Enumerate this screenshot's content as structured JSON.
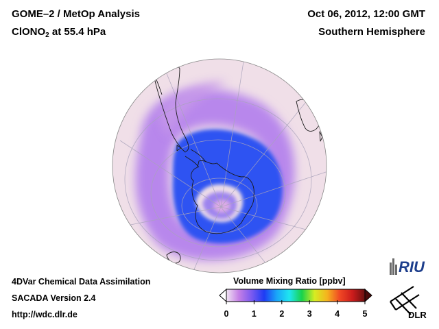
{
  "header": {
    "title": "GOME–2 / MetOp Analysis",
    "species": "ClONO",
    "species_sub": "2",
    "level": " at 55.4 hPa",
    "datetime": "Oct 06, 2012, 12:00 GMT",
    "region": "Southern Hemisphere"
  },
  "footer": {
    "line1": "4DVar Chemical Data Assimilation",
    "line2": "SACADA Version 2.4",
    "line3": "http://wdc.dlr.de"
  },
  "colorbar": {
    "title": "Volume Mixing Ratio [ppbv]",
    "ticks": [
      "0",
      "1",
      "2",
      "3",
      "4",
      "5"
    ],
    "range": [
      0,
      5
    ],
    "colors": [
      "#f0e4f2",
      "#c47ee6",
      "#7a5af0",
      "#1e3cf4",
      "#19a6f8",
      "#1fe6f0",
      "#18d24a",
      "#d6ec22",
      "#f5b31e",
      "#f04824",
      "#cc1c1c",
      "#6a1010"
    ]
  },
  "logos": {
    "riu": "RIU",
    "dlr": "DLR"
  },
  "map": {
    "projection": "orthographic, south pole view",
    "background_color": "#f0dfe8",
    "low_color": "#2e4ff2",
    "mid_color": "#b685ea",
    "grid_color": "#a9a3bb"
  }
}
